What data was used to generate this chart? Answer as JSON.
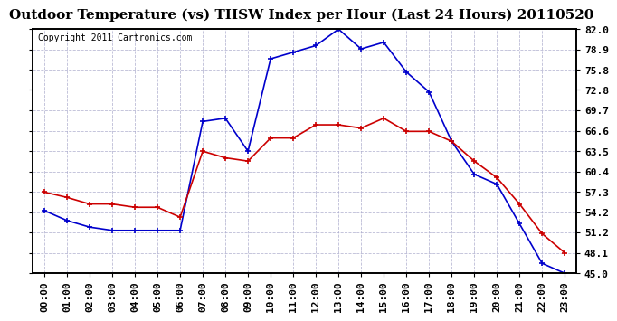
{
  "title": "Outdoor Temperature (vs) THSW Index per Hour (Last 24 Hours) 20110520",
  "copyright": "Copyright 2011 Cartronics.com",
  "hours": [
    "00:00",
    "01:00",
    "02:00",
    "03:00",
    "04:00",
    "05:00",
    "06:00",
    "07:00",
    "08:00",
    "09:00",
    "10:00",
    "11:00",
    "12:00",
    "13:00",
    "14:00",
    "15:00",
    "16:00",
    "17:00",
    "18:00",
    "19:00",
    "20:00",
    "21:00",
    "22:00",
    "23:00"
  ],
  "temp": [
    57.3,
    56.5,
    55.5,
    55.5,
    55.0,
    55.0,
    53.5,
    63.5,
    62.5,
    62.0,
    65.5,
    65.5,
    67.5,
    67.5,
    67.0,
    68.5,
    66.5,
    66.5,
    65.0,
    62.0,
    59.5,
    55.5,
    51.0,
    48.1
  ],
  "thsw": [
    54.5,
    53.0,
    52.0,
    51.5,
    51.5,
    51.5,
    51.5,
    68.0,
    68.5,
    63.5,
    77.5,
    78.5,
    79.5,
    82.0,
    79.0,
    80.0,
    75.5,
    72.5,
    65.0,
    60.0,
    58.5,
    52.5,
    46.5,
    45.0
  ],
  "ylim": [
    45.0,
    82.0
  ],
  "yticks": [
    45.0,
    48.1,
    51.2,
    54.2,
    57.3,
    60.4,
    63.5,
    66.6,
    69.7,
    72.8,
    75.8,
    78.9,
    82.0
  ],
  "temp_color": "#cc0000",
  "thsw_color": "#0000cc",
  "bg_color": "#ffffff",
  "grid_color": "#aaaacc",
  "title_fontsize": 11,
  "copyright_fontsize": 7,
  "tick_fontsize": 8
}
